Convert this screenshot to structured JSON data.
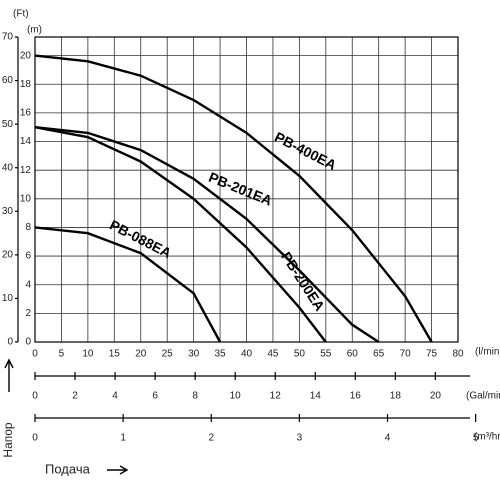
{
  "chart_data": {
    "type": "line",
    "xlabel": "(l/min)",
    "ylabel": "(m)",
    "y2label": "(Ft)",
    "xlim": [
      0,
      80
    ],
    "xticks": [
      0,
      5,
      10,
      15,
      20,
      25,
      30,
      35,
      40,
      45,
      50,
      55,
      60,
      65,
      70,
      75,
      80
    ],
    "ylim": [
      0,
      21.3
    ],
    "yticks": [
      0,
      2,
      4,
      6,
      8,
      10,
      12,
      14,
      16,
      18,
      20
    ],
    "y2lim": [
      0,
      70
    ],
    "y2ticks": [
      0,
      10,
      20,
      30,
      40,
      50,
      60,
      70
    ],
    "grid": true,
    "gal_axis": {
      "label": "(Gal/min)",
      "xlim": [
        0,
        21.13
      ],
      "xticks": [
        0,
        2,
        4,
        6,
        8,
        10,
        12,
        14,
        16,
        18,
        20
      ]
    },
    "m3_axis": {
      "label": "(m³/hr)",
      "xlim": [
        0,
        4.8
      ],
      "xticks": [
        0,
        1,
        2,
        3,
        4,
        5
      ]
    },
    "head_label": "Напор",
    "flow_label": "Подача",
    "series": [
      {
        "name": "PB-400EA",
        "color": "#000000",
        "x": [
          0,
          10,
          20,
          30,
          40,
          50,
          60,
          70,
          75
        ],
        "values": [
          20,
          19.6,
          18.6,
          16.9,
          14.6,
          11.6,
          7.8,
          3.2,
          0
        ]
      },
      {
        "name": "PB-201EA",
        "color": "#000000",
        "x": [
          0,
          10,
          20,
          30,
          40,
          50,
          60,
          65
        ],
        "values": [
          15,
          14.6,
          13.4,
          11.4,
          8.6,
          5,
          1.2,
          0
        ]
      },
      {
        "name": "PB-200EA",
        "color": "#000000",
        "x": [
          0,
          10,
          20,
          30,
          40,
          50,
          55
        ],
        "values": [
          15,
          14.3,
          12.6,
          10,
          6.6,
          2.4,
          0
        ]
      },
      {
        "name": "PB-088EA",
        "color": "#000000",
        "x": [
          0,
          10,
          20,
          30,
          35
        ],
        "values": [
          8,
          7.6,
          6.2,
          3.4,
          0
        ]
      }
    ]
  }
}
